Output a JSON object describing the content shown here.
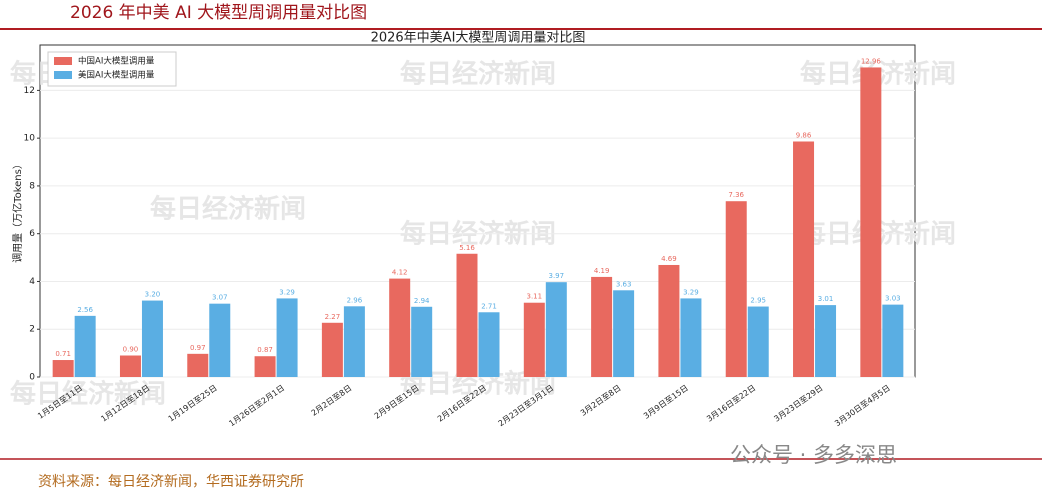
{
  "header": {
    "title": "2026 年中美 AI 大模型周调用量对比图"
  },
  "chart_data": {
    "type": "bar",
    "title": "2026年中美AI大模型周调用量对比图",
    "y_label": "调用量（万亿Tokens）",
    "categories": [
      "1月5日至11日",
      "1月12日至18日",
      "1月19日至25日",
      "1月26日至2月1日",
      "2月2日至8日",
      "2月9日至15日",
      "2月16日至22日",
      "2月23日至3月1日",
      "3月2日至8日",
      "3月9日至15日",
      "3月16日至22日",
      "3月23日至29日",
      "3月30日至4月5日"
    ],
    "series": [
      {
        "name": "中国AI大模型调用量",
        "color": "#e8695f",
        "values": [
          0.71,
          0.9,
          0.97,
          0.87,
          2.27,
          4.12,
          5.16,
          3.11,
          4.19,
          4.69,
          7.36,
          9.86,
          12.96
        ],
        "value_labels": [
          "0.71",
          "0.90",
          "0.97",
          "0.87",
          "2.27",
          "4.12",
          "5.16",
          "3.11",
          "4.19",
          "4.69",
          "7.36",
          "9.86",
          "12.96"
        ]
      },
      {
        "name": "美国AI大模型调用量",
        "color": "#5aaee3",
        "values": [
          2.56,
          3.2,
          3.07,
          3.29,
          2.96,
          2.94,
          2.71,
          3.97,
          3.63,
          3.29,
          2.95,
          3.01,
          3.03
        ],
        "value_labels": [
          "2.56",
          "3.20",
          "3.07",
          "3.29",
          "2.96",
          "2.94",
          "2.71",
          "3.97",
          "3.63",
          "3.29",
          "2.95",
          "3.01",
          "3.03"
        ]
      }
    ],
    "ylim": [
      0,
      13.9
    ],
    "yticks": [
      0,
      2,
      4,
      6,
      8,
      10,
      12
    ],
    "grid": true,
    "legend": "upper-left",
    "watermark": "每日经济新闻"
  },
  "footer": {
    "source": "资料来源：每日经济新闻，华西证券研究所",
    "account": "公众号 · 多多深思"
  }
}
